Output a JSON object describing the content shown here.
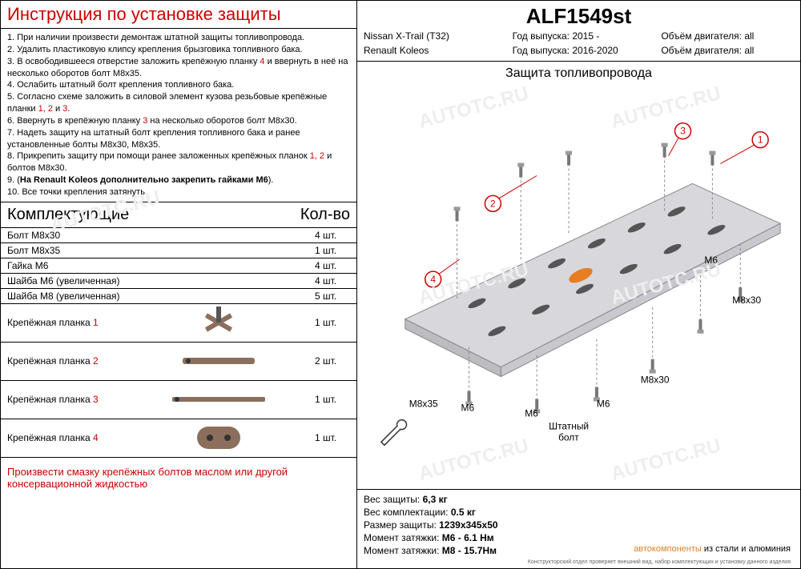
{
  "install_title": "Инструкция по установке защиты",
  "instructions": [
    {
      "n": "1.",
      "t": " При наличии произвести демонтаж штатной защиты топливопровода."
    },
    {
      "n": "2.",
      "t": " Удалить пластиковую клипсу крепления брызговика  топливного бака."
    },
    {
      "n": "3.",
      "t": " В освободившееся отверстие заложить крепёжную планку ",
      "r": "4",
      "t2": " и ввернуть в неё на несколько оборотов болт М8х35."
    },
    {
      "n": "4.",
      "t": " Ослабить штатный болт крепления топливного бака."
    },
    {
      "n": "5.",
      "t": " Согласно схеме заложить в силовой элемент кузова резьбовые крепёжные планки ",
      "r": "1, 2",
      "r2": " и ",
      "r3": "3",
      "t2": "."
    },
    {
      "n": "6.",
      "t": " Ввернуть в крепёжную планку ",
      "r": "3",
      "t2": " на несколько оборотов болт М8х30."
    },
    {
      "n": "7.",
      "t": " Надеть защиту на штатный болт крепления топливного бака и ранее установленные болты М8х30, М8х35."
    },
    {
      "n": "8.",
      "t": " Прикрепить защиту при помощи ранее заложенных крепёжных планок ",
      "r": "1, 2",
      "t2": " и болтов М8х30."
    },
    {
      "n": "9.",
      "t": " (",
      "b": "На Renault Koleos дополнительно закрепить гайками М6",
      "t2": ")."
    },
    {
      "n": "10.",
      "t": " Все точки крепления затянуть."
    }
  ],
  "parts_header": {
    "left": "Комплектующие",
    "right": "Кол-во"
  },
  "simple_parts": [
    {
      "name": "Болт М8х30",
      "qty": "4 шт."
    },
    {
      "name": "Болт М8х35",
      "qty": "1 шт."
    },
    {
      "name": "Гайка М6",
      "qty": "4 шт."
    },
    {
      "name": "Шайба М6   (увеличенная)",
      "qty": "4 шт."
    },
    {
      "name": "Шайба М8   (увеличенная)",
      "qty": "5 шт."
    }
  ],
  "bracket_parts": [
    {
      "name": "Крепёжная планка ",
      "num": "1",
      "qty": "1 шт.",
      "shape": "x"
    },
    {
      "name": "Крепёжная планка ",
      "num": "2",
      "qty": "2 шт.",
      "shape": "bar"
    },
    {
      "name": "Крепёжная планка ",
      "num": "3",
      "qty": "1 шт.",
      "shape": "thin"
    },
    {
      "name": "Крепёжная планка ",
      "num": "4",
      "qty": "1 шт.",
      "shape": "oval"
    }
  ],
  "footer_note": "Произвести смазку крепёжных болтов маслом или другой консервационной жидкостью",
  "part_number": "ALF1549st",
  "vehicles": [
    {
      "model": "Nissan X-Trail (T32)",
      "year_lbl": "Год выпуска: ",
      "year": "2015 -",
      "eng_lbl": "Объём двигателя: ",
      "eng": "all"
    },
    {
      "model": "Renault Koleos",
      "year_lbl": "Год выпуска: ",
      "year": "2016-2020",
      "eng_lbl": "Объём двигателя: ",
      "eng": "all"
    }
  ],
  "diagram_title": "Защита топливопровода",
  "diagram_labels": {
    "m6": "М6",
    "m8x30": "М8х30",
    "m8x35": "М8х35",
    "stock_bolt": "Штатный\nболт"
  },
  "specs": [
    {
      "label": "Вес защиты: ",
      "val": "6,3 кг"
    },
    {
      "label": "Вес комплектации: ",
      "val": "0.5 кг"
    },
    {
      "label": "Размер защиты: ",
      "val": "1239х345х50"
    },
    {
      "label": "Момент затяжки:   ",
      "val": "М6 - 6.1 Нм"
    },
    {
      "label": "Момент затяжки:   ",
      "val": "М8 - 15.7Нм"
    }
  ],
  "brand": {
    "hl": "автокомпоненты",
    "rest": " из стали и алюминия"
  },
  "tiny_footer": "Конструкторский отдел проверяет внешний вид, набор комплектующих и установку данного изделия",
  "watermark": "AUTOTC.RU",
  "colors": {
    "red": "#c00",
    "bracket_fill": "#8b6f5c",
    "plate_fill": "#d8d8dc",
    "plate_stroke": "#888",
    "orange": "#e67e22"
  }
}
